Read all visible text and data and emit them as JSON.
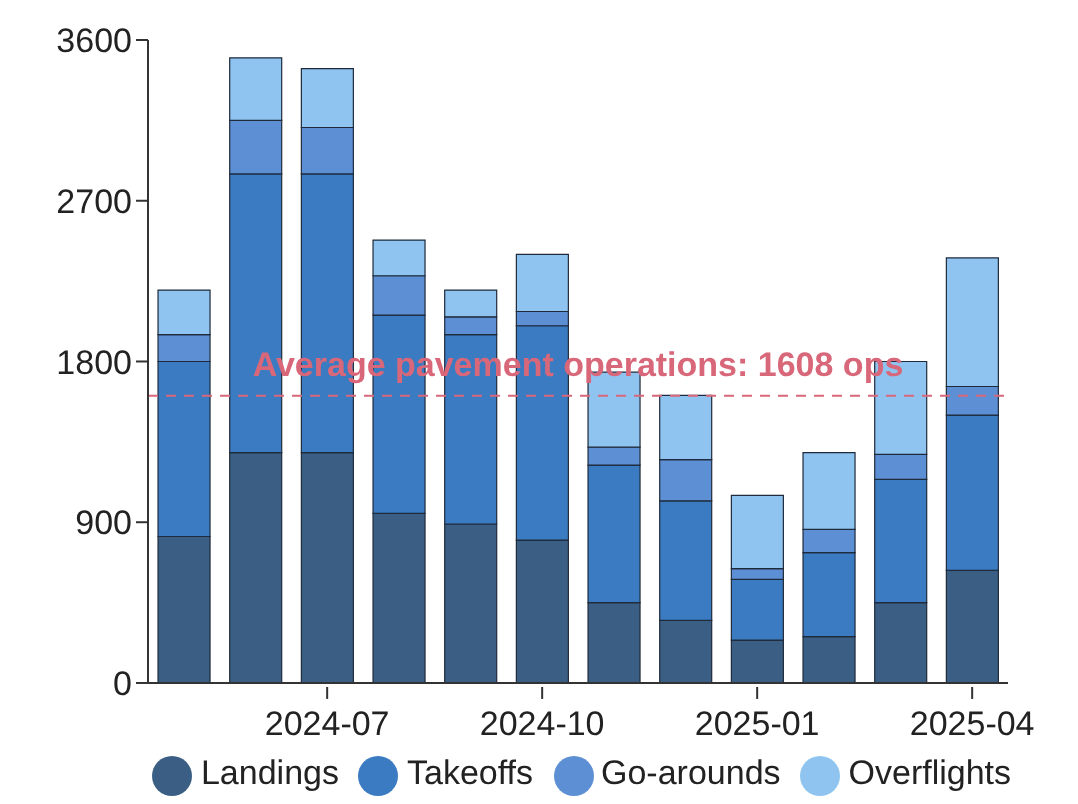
{
  "chart_data": {
    "type": "bar",
    "stacked": true,
    "categories": [
      null,
      null,
      "2024-07",
      null,
      null,
      "2024-10",
      null,
      null,
      "2025-01",
      null,
      null,
      "2025-04"
    ],
    "series": [
      {
        "name": "Landings",
        "color": "#3b5f84",
        "values": [
          820,
          1290,
          1290,
          950,
          890,
          800,
          450,
          350,
          240,
          260,
          450,
          630
        ]
      },
      {
        "name": "Takeoffs",
        "color": "#3a7bc2",
        "values": [
          980,
          1560,
          1560,
          1110,
          1060,
          1200,
          770,
          670,
          340,
          470,
          690,
          870
        ]
      },
      {
        "name": "Go-arounds",
        "color": "#5d8fd4",
        "values": [
          150,
          300,
          260,
          220,
          100,
          80,
          100,
          230,
          60,
          130,
          140,
          160
        ]
      },
      {
        "name": "Overflights",
        "color": "#8fc4f0",
        "values": [
          250,
          350,
          330,
          200,
          150,
          320,
          420,
          360,
          410,
          430,
          520,
          720
        ]
      }
    ],
    "ylim": [
      0,
      3600
    ],
    "yticks": [
      0,
      900,
      1800,
      2700,
      3600
    ],
    "grid": false,
    "legend": "bottom",
    "ref_lines": [
      {
        "axis": "y",
        "value": 1608,
        "label": "Average pavement operations: 1608 ops",
        "color": "#d9677a",
        "line_style": "dashed"
      }
    ]
  }
}
